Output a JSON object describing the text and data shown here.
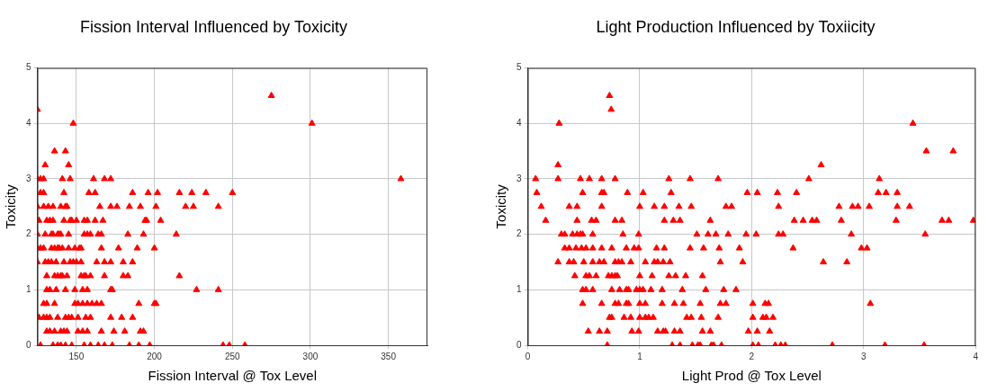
{
  "chart_data": [
    {
      "type": "scatter",
      "title": "Fission Interval Influenced by Toxicity",
      "xlabel": "Fission Interval @ Tox Level",
      "ylabel": "Toxicity",
      "xlim": [
        125,
        375
      ],
      "xticks": [
        150,
        200,
        250,
        300,
        350
      ],
      "ylim": [
        0,
        5
      ],
      "yticks": [
        0,
        1,
        2,
        3,
        4,
        5
      ],
      "grid": true,
      "marker": "triangle",
      "color": "#ff0000",
      "x": [
        275,
        125,
        148,
        301,
        136,
        143,
        130,
        145,
        125,
        127,
        129,
        141,
        146,
        161,
        168,
        172,
        358,
        127,
        129,
        142,
        158,
        162,
        186,
        196,
        202,
        216,
        224,
        233,
        250,
        125,
        129,
        132,
        135,
        140,
        143,
        144,
        165,
        172,
        176,
        184,
        191,
        201,
        220,
        225,
        241,
        126,
        131,
        133,
        135,
        142,
        146,
        147,
        150,
        155,
        157,
        162,
        167,
        194,
        195,
        204,
        125,
        130,
        134,
        135,
        138,
        139,
        140,
        145,
        155,
        157,
        159,
        164,
        166,
        183,
        193,
        214,
        125,
        127,
        129,
        134,
        136,
        138,
        139,
        141,
        145,
        149,
        152,
        153,
        166,
        177,
        189,
        200,
        125,
        130,
        132,
        134,
        137,
        142,
        146,
        148,
        150,
        153,
        163,
        168,
        172,
        180,
        186,
        131,
        136,
        138,
        140,
        141,
        144,
        153,
        155,
        156,
        159,
        168,
        180,
        183,
        216,
        131,
        133,
        137,
        143,
        149,
        154,
        157,
        172,
        173,
        227,
        241,
        129,
        131,
        136,
        149,
        151,
        154,
        157,
        160,
        163,
        166,
        190,
        200,
        201,
        126,
        129,
        131,
        133,
        138,
        143,
        145,
        147,
        151,
        156,
        159,
        172,
        179,
        186,
        131,
        133,
        136,
        140,
        142,
        144,
        151,
        154,
        157,
        166,
        174,
        181,
        191,
        193,
        127,
        135,
        138,
        140,
        143,
        147,
        155,
        159,
        164,
        168,
        173,
        184,
        190,
        197,
        244,
        248,
        258
      ],
      "values": [
        4.5,
        4.25,
        4,
        4,
        3.5,
        3.5,
        3.25,
        3.25,
        3,
        3,
        3,
        3,
        3,
        3,
        3,
        3,
        3,
        2.75,
        2.75,
        2.75,
        2.75,
        2.75,
        2.75,
        2.75,
        2.75,
        2.75,
        2.75,
        2.75,
        2.75,
        2.5,
        2.5,
        2.5,
        2.5,
        2.5,
        2.5,
        2.5,
        2.5,
        2.5,
        2.5,
        2.5,
        2.5,
        2.5,
        2.5,
        2.5,
        2.5,
        2.25,
        2.25,
        2.25,
        2.25,
        2.25,
        2.25,
        2.25,
        2.25,
        2.25,
        2.25,
        2.25,
        2.25,
        2.25,
        2.25,
        2.25,
        2,
        2,
        2,
        2,
        2,
        2,
        2,
        2,
        2,
        2,
        2,
        2,
        2,
        2,
        2,
        2,
        1.75,
        1.75,
        1.75,
        1.75,
        1.75,
        1.75,
        1.75,
        1.75,
        1.75,
        1.75,
        1.75,
        1.75,
        1.75,
        1.75,
        1.75,
        1.75,
        1.5,
        1.5,
        1.5,
        1.5,
        1.5,
        1.5,
        1.5,
        1.5,
        1.5,
        1.5,
        1.5,
        1.5,
        1.5,
        1.5,
        1.5,
        1.25,
        1.25,
        1.25,
        1.25,
        1.25,
        1.25,
        1.25,
        1.25,
        1.25,
        1.25,
        1.25,
        1.25,
        1.25,
        1.25,
        1,
        1,
        1,
        1,
        1,
        1,
        1,
        1,
        1,
        1,
        1,
        0.75,
        0.75,
        0.75,
        0.75,
        0.75,
        0.75,
        0.75,
        0.75,
        0.75,
        0.75,
        0.75,
        0.75,
        0.75,
        0.5,
        0.5,
        0.5,
        0.5,
        0.5,
        0.5,
        0.5,
        0.5,
        0.5,
        0.5,
        0.5,
        0.5,
        0.5,
        0.5,
        0.25,
        0.25,
        0.25,
        0.25,
        0.25,
        0.25,
        0.25,
        0.25,
        0.25,
        0.25,
        0.25,
        0.25,
        0.25,
        0.25,
        0,
        0,
        0,
        0,
        0,
        0,
        0,
        0,
        0,
        0,
        0,
        0,
        0,
        0,
        0,
        0,
        0
      ]
    },
    {
      "type": "scatter",
      "title": "Light Production Influenced by Toxiicity",
      "xlabel": "Light Prod @ Tox Level",
      "ylabel": "Toxicity",
      "xlim": [
        0,
        4
      ],
      "xticks": [
        0,
        1,
        2,
        3,
        4
      ],
      "ylim": [
        0,
        5
      ],
      "yticks": [
        0,
        1,
        2,
        3,
        4,
        5
      ],
      "grid": true,
      "marker": "triangle",
      "color": "#ff0000",
      "x": [
        0.73,
        0.745,
        0.28,
        3.44,
        3.56,
        3.8,
        0.27,
        2.62,
        0.07,
        0.27,
        0.47,
        0.55,
        0.66,
        0.78,
        1.26,
        1.45,
        1.7,
        2.51,
        3.14,
        0.08,
        0.49,
        0.66,
        0.68,
        0.89,
        1.03,
        1.28,
        1.96,
        2.05,
        2.23,
        2.4,
        3.13,
        3.2,
        3.3,
        0.12,
        0.37,
        0.44,
        0.66,
        1,
        1.13,
        1.22,
        1.35,
        1.46,
        1.77,
        1.82,
        2.24,
        2.78,
        2.9,
        2.95,
        3.05,
        3.3,
        3.41,
        0.16,
        0.44,
        0.57,
        0.61,
        0.78,
        0.84,
        1.22,
        1.3,
        1.36,
        1.63,
        2.38,
        2.46,
        2.54,
        2.58,
        2.8,
        3.29,
        3.7,
        3.76,
        3.98,
        0.3,
        0.33,
        0.4,
        0.44,
        0.47,
        0.49,
        0.58,
        0.85,
        0.99,
        1.51,
        1.61,
        1.68,
        1.79,
        1.95,
        2.04,
        2.24,
        2.28,
        2.89,
        3.55,
        0.33,
        0.37,
        0.43,
        0.48,
        0.52,
        0.58,
        0.66,
        0.75,
        0.88,
        0.95,
        0.99,
        1.15,
        1.22,
        1.45,
        1.57,
        1.71,
        1.89,
        2.37,
        2.98,
        3.03,
        0.27,
        0.37,
        0.41,
        0.5,
        0.58,
        0.64,
        0.68,
        0.78,
        0.81,
        0.84,
        0.92,
        1.05,
        1.13,
        1.16,
        1.21,
        1.27,
        1.72,
        1.92,
        2.64,
        2.85,
        0.42,
        0.52,
        0.55,
        0.61,
        0.72,
        0.75,
        0.78,
        0.8,
        1,
        1.11,
        1.26,
        1.32,
        1.41,
        1.56,
        0.49,
        0.52,
        0.58,
        0.75,
        0.82,
        0.88,
        0.9,
        0.97,
        1,
        1.03,
        1.1,
        1.2,
        1.38,
        1.59,
        1.75,
        1.86,
        0.49,
        0.66,
        0.78,
        0.81,
        0.88,
        0.9,
        1,
        1.05,
        1.2,
        1.31,
        1.39,
        1.54,
        1.72,
        1.77,
        2.01,
        2.12,
        2.15,
        3.06,
        0.73,
        0.75,
        0.86,
        0.92,
        1,
        1.05,
        1.08,
        1.12,
        1.42,
        1.46,
        1.55,
        1.7,
        2.01,
        2.1,
        2.13,
        2.19,
        0.54,
        0.64,
        0.71,
        0.93,
        0.99,
        1.16,
        1.21,
        1.23,
        1.31,
        1.36,
        1.56,
        1.63,
        1.97,
        2.05,
        2.16,
        0.71,
        1.29,
        1.36,
        1.47,
        1.52,
        1.54,
        1.64,
        1.66,
        1.73,
        2.01,
        2.06,
        2.21,
        2.26,
        2.3,
        2.72,
        3.19,
        3.54
      ],
      "values": [
        4.5,
        4.25,
        4,
        4,
        3.5,
        3.5,
        3.25,
        3.25,
        3,
        3,
        3,
        3,
        3,
        3,
        3,
        3,
        3,
        3,
        3,
        2.75,
        2.75,
        2.75,
        2.75,
        2.75,
        2.75,
        2.75,
        2.75,
        2.75,
        2.75,
        2.75,
        2.75,
        2.75,
        2.75,
        2.5,
        2.5,
        2.5,
        2.5,
        2.5,
        2.5,
        2.5,
        2.5,
        2.5,
        2.5,
        2.5,
        2.5,
        2.5,
        2.5,
        2.5,
        2.5,
        2.5,
        2.5,
        2.25,
        2.25,
        2.25,
        2.25,
        2.25,
        2.25,
        2.25,
        2.25,
        2.25,
        2.25,
        2.25,
        2.25,
        2.25,
        2.25,
        2.25,
        2.25,
        2.25,
        2.25,
        2.25,
        2,
        2,
        2,
        2,
        2,
        2,
        2,
        2,
        2,
        2,
        2,
        2,
        2,
        2,
        2,
        2,
        2,
        2,
        2,
        1.75,
        1.75,
        1.75,
        1.75,
        1.75,
        1.75,
        1.75,
        1.75,
        1.75,
        1.75,
        1.75,
        1.75,
        1.75,
        1.75,
        1.75,
        1.75,
        1.75,
        1.75,
        1.75,
        1.75,
        1.5,
        1.5,
        1.5,
        1.5,
        1.5,
        1.5,
        1.5,
        1.5,
        1.5,
        1.5,
        1.5,
        1.5,
        1.5,
        1.5,
        1.5,
        1.5,
        1.5,
        1.5,
        1.5,
        1.5,
        1.25,
        1.25,
        1.25,
        1.25,
        1.25,
        1.25,
        1.25,
        1.25,
        1.25,
        1.25,
        1.25,
        1.25,
        1.25,
        1.25,
        1,
        1,
        1,
        1,
        1,
        1,
        1,
        1,
        1,
        1,
        1,
        1,
        1,
        1,
        1,
        1,
        0.75,
        0.75,
        0.75,
        0.75,
        0.75,
        0.75,
        0.75,
        0.75,
        0.75,
        0.75,
        0.75,
        0.75,
        0.75,
        0.75,
        0.75,
        0.75,
        0.75,
        0.75,
        0.5,
        0.5,
        0.5,
        0.5,
        0.5,
        0.5,
        0.5,
        0.5,
        0.5,
        0.5,
        0.5,
        0.5,
        0.5,
        0.5,
        0.5,
        0.5,
        0.25,
        0.25,
        0.25,
        0.25,
        0.25,
        0.25,
        0.25,
        0.25,
        0.25,
        0.25,
        0.25,
        0.25,
        0.25,
        0.25,
        0.25,
        0,
        0,
        0,
        0,
        0,
        0,
        0,
        0,
        0,
        0,
        0,
        0,
        0,
        0,
        0,
        0,
        0
      ]
    }
  ]
}
